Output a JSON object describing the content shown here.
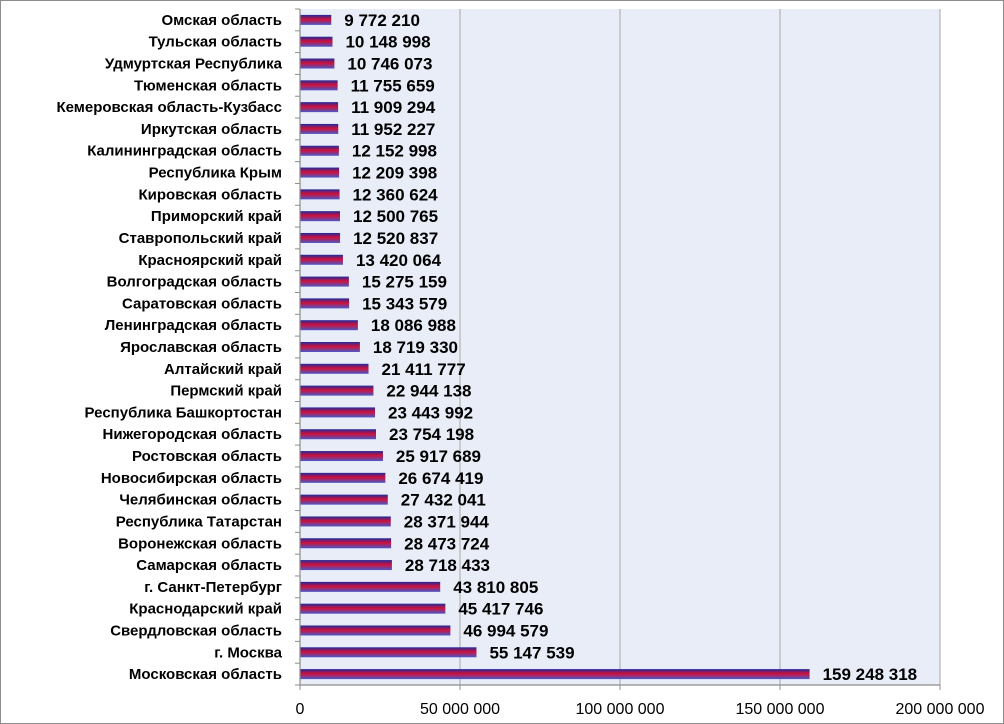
{
  "chart_data": {
    "type": "bar",
    "orientation": "horizontal",
    "categories": [
      "Омская область",
      "Тульская область",
      "Удмуртская Республика",
      "Тюменская область",
      "Кемеровская область-Кузбасс",
      "Иркутская область",
      "Калининградская область",
      "Республика Крым",
      "Кировская область",
      "Приморский край",
      "Ставропольский край",
      "Красноярский край",
      "Волгоградская область",
      "Саратовская область",
      "Ленинградская область",
      "Ярославская область",
      "Алтайский край",
      "Пермский край",
      "Республика Башкортостан",
      "Нижегородская область",
      "Ростовская область",
      "Новосибирская область",
      "Челябинская область",
      "Республика Татарстан",
      "Воронежская область",
      "Самарская область",
      "г. Санкт-Петербург",
      "Краснодарский край",
      "Свердловская область",
      "г. Москва",
      "Московская область"
    ],
    "values": [
      9772210,
      10148998,
      10746073,
      11755659,
      11909294,
      11952227,
      12152998,
      12209398,
      12360624,
      12500765,
      12520837,
      13420064,
      15275159,
      15343579,
      18086988,
      18719330,
      21411777,
      22944138,
      23443992,
      23754198,
      25917689,
      26674419,
      27432041,
      28371944,
      28473724,
      28718433,
      43810805,
      45417746,
      46994579,
      55147539,
      159248318
    ],
    "value_labels": [
      "9 772 210",
      "10 148 998",
      "10 746 073",
      "11 755 659",
      "11 909 294",
      "11 952 227",
      "12 152 998",
      "12 209 398",
      "12 360 624",
      "12 500 765",
      "12 520 837",
      "13 420 064",
      "15 275 159",
      "15 343 579",
      "18 086 988",
      "18 719 330",
      "21 411 777",
      "22 944 138",
      "23 443 992",
      "23 754 198",
      "25 917 689",
      "26 674 419",
      "27 432 041",
      "28 371 944",
      "28 473 724",
      "28 718 433",
      "43 810 805",
      "45 417 746",
      "46 994 579",
      "55 147 539",
      "159 248 318"
    ],
    "x_ticks": [
      0,
      50000000,
      100000000,
      150000000,
      200000000
    ],
    "x_tick_labels": [
      "0",
      "50 000 000",
      "100 000 000",
      "150 000 000",
      "200 000 000"
    ],
    "xlim": [
      0,
      200000000
    ],
    "title": "",
    "xlabel": "",
    "ylabel": "",
    "grid": "vertical",
    "legend": "none",
    "colors": {
      "plot_background": "#e9edf7",
      "gridline": "#a6a6a6",
      "bar_top": "#1f2a9e",
      "bar_mid": "#d0103a",
      "bar_bottom": "#4a57c8",
      "axis": "#8c8c8c",
      "border": "#8c8c8c"
    }
  }
}
